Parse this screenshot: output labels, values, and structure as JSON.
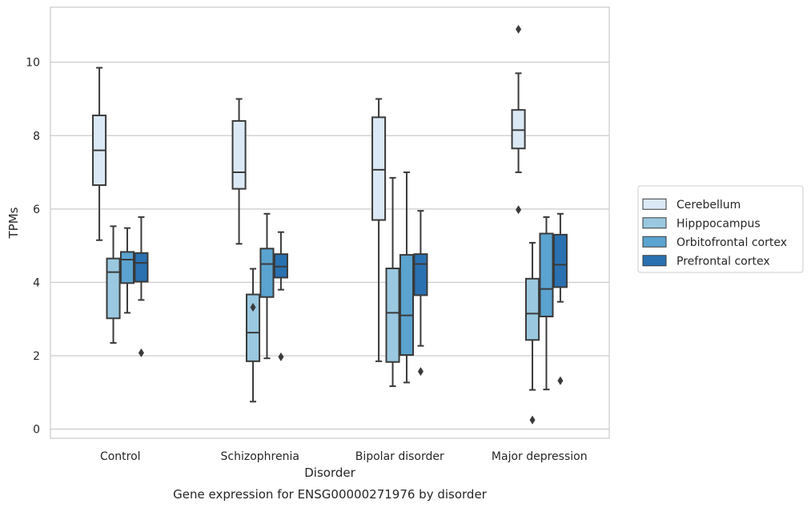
{
  "chart_data": {
    "type": "box",
    "title": "",
    "caption": "Gene expression for ENSG00000271976 by disorder",
    "xlabel": "Disorder",
    "ylabel": "TPMs",
    "ylim": [
      -0.25,
      11.5
    ],
    "yticks": [
      0,
      2,
      4,
      6,
      8,
      10
    ],
    "grid": "horizontal",
    "legend_position": "right",
    "categories": [
      "Control",
      "Schizophrenia",
      "Bipolar disorder",
      "Major depression"
    ],
    "series": [
      {
        "name": "Cerebellum",
        "color": "#dbe9f6",
        "boxes": [
          {
            "whislo": 5.15,
            "q1": 6.65,
            "med": 7.6,
            "q3": 8.55,
            "whishi": 9.85,
            "fliers": []
          },
          {
            "whislo": 5.05,
            "q1": 6.55,
            "med": 7.0,
            "q3": 8.4,
            "whishi": 9.0,
            "fliers": []
          },
          {
            "whislo": 1.85,
            "q1": 5.7,
            "med": 7.07,
            "q3": 8.5,
            "whishi": 9.0,
            "fliers": []
          },
          {
            "whislo": 7.0,
            "q1": 7.65,
            "med": 8.15,
            "q3": 8.7,
            "whishi": 9.7,
            "fliers": [
              5.98,
              10.9
            ]
          }
        ]
      },
      {
        "name": "Hipppocampus",
        "color": "#9ac8e0",
        "boxes": [
          {
            "whislo": 2.35,
            "q1": 3.02,
            "med": 4.28,
            "q3": 4.65,
            "whishi": 5.53,
            "fliers": []
          },
          {
            "whislo": 0.75,
            "q1": 1.85,
            "med": 2.63,
            "q3": 3.67,
            "whishi": 4.37,
            "fliers": [
              3.32
            ]
          },
          {
            "whislo": 1.17,
            "q1": 1.83,
            "med": 3.17,
            "q3": 4.38,
            "whishi": 6.85,
            "fliers": []
          },
          {
            "whislo": 1.07,
            "q1": 2.43,
            "med": 3.15,
            "q3": 4.1,
            "whishi": 5.08,
            "fliers": [
              0.25
            ]
          }
        ]
      },
      {
        "name": "Orbitofrontal cortex",
        "color": "#5ba3d0",
        "boxes": [
          {
            "whislo": 3.17,
            "q1": 3.98,
            "med": 4.62,
            "q3": 4.83,
            "whishi": 5.48,
            "fliers": []
          },
          {
            "whislo": 1.93,
            "q1": 3.6,
            "med": 4.5,
            "q3": 4.92,
            "whishi": 5.87,
            "fliers": []
          },
          {
            "whislo": 1.27,
            "q1": 2.02,
            "med": 3.1,
            "q3": 4.75,
            "whishi": 7.0,
            "fliers": []
          },
          {
            "whislo": 1.08,
            "q1": 3.07,
            "med": 3.82,
            "q3": 5.33,
            "whishi": 5.78,
            "fliers": []
          }
        ]
      },
      {
        "name": "Prefrontal cortex",
        "color": "#2a71b2",
        "boxes": [
          {
            "whislo": 3.52,
            "q1": 4.02,
            "med": 4.53,
            "q3": 4.8,
            "whishi": 5.78,
            "fliers": [
              2.08
            ]
          },
          {
            "whislo": 3.8,
            "q1": 4.13,
            "med": 4.43,
            "q3": 4.77,
            "whishi": 5.37,
            "fliers": [
              1.97
            ]
          },
          {
            "whislo": 2.27,
            "q1": 3.65,
            "med": 4.5,
            "q3": 4.77,
            "whishi": 5.95,
            "fliers": [
              1.57
            ]
          },
          {
            "whislo": 3.47,
            "q1": 3.87,
            "med": 4.48,
            "q3": 5.3,
            "whishi": 5.87,
            "fliers": [
              1.32
            ]
          }
        ]
      }
    ]
  }
}
